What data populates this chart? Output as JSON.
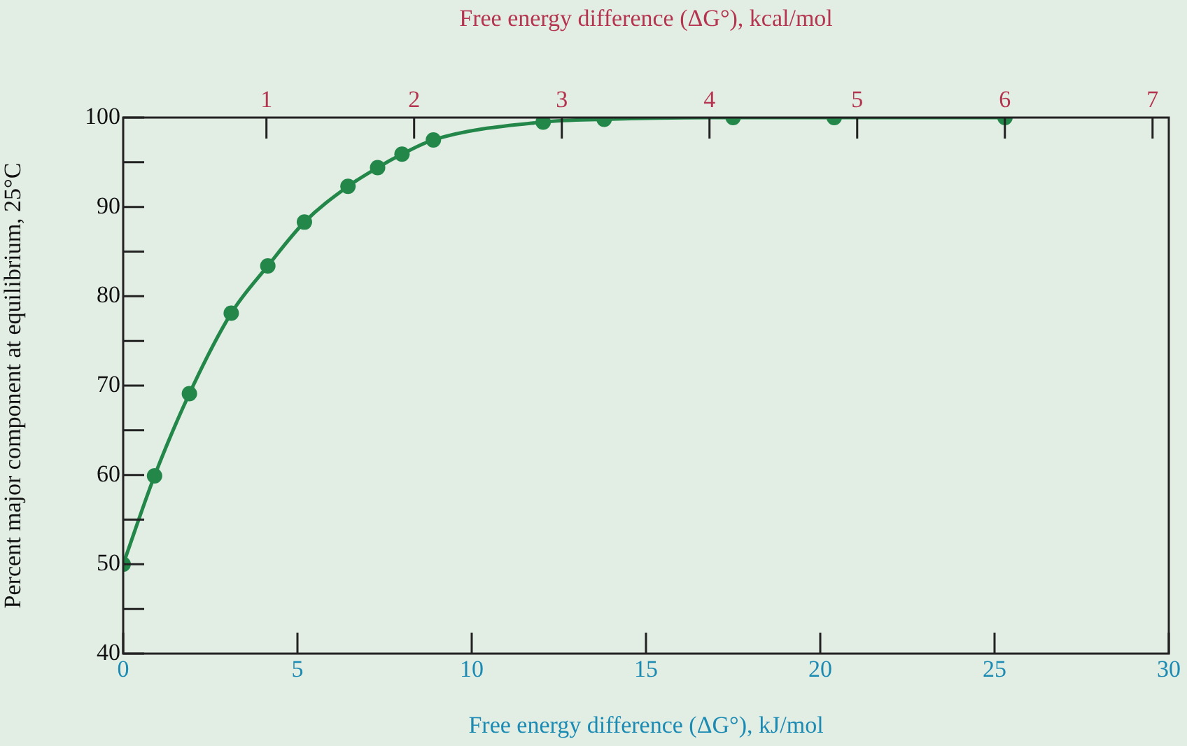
{
  "chart_data": {
    "type": "line",
    "xlabel": "Free energy difference (ΔG°), kJ/mol",
    "x2label": "Free energy difference (ΔG°), kcal/mol",
    "ylabel": "Percent major component at equilibrium, 25°C",
    "x": [
      0,
      0.9,
      1.9,
      3.1,
      4.15,
      5.2,
      6.45,
      7.3,
      8.0,
      8.9,
      12.05,
      13.8,
      17.5,
      20.4,
      25.3
    ],
    "series": [
      {
        "color": "#23874a",
        "values": [
          50,
          59.9,
          69.1,
          78.1,
          83.4,
          88.3,
          92.3,
          94.4,
          95.9,
          97.5,
          99.5,
          99.8,
          100,
          100,
          100
        ]
      }
    ],
    "xlim": [
      0,
      30
    ],
    "xticks": [
      0,
      5,
      10,
      15,
      20,
      25,
      30
    ],
    "x2lim": [
      0.03,
      7.11
    ],
    "x2ticks": [
      1,
      2,
      3,
      4,
      5,
      6,
      7
    ],
    "ylim": [
      40,
      100
    ],
    "yticks": [
      40,
      {
        "value": 45,
        "label": null
      },
      50,
      {
        "value": 55,
        "label": null
      },
      60,
      {
        "value": 65,
        "label": null
      },
      70,
      {
        "value": 75,
        "label": null
      },
      80,
      {
        "value": 85,
        "label": null
      },
      90,
      {
        "value": 95,
        "label": null
      },
      100
    ],
    "marker": "circle",
    "line_style": "solid",
    "grid": false,
    "legend": false
  }
}
